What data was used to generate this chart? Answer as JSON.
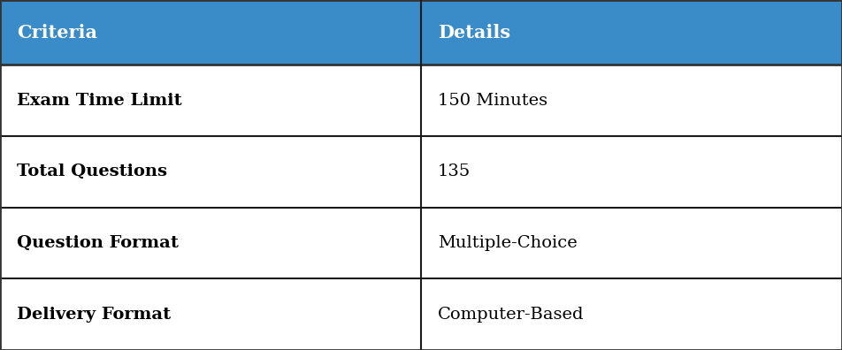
{
  "header": [
    "Criteria",
    "Details"
  ],
  "rows": [
    [
      "Exam Time Limit",
      "150 Minutes"
    ],
    [
      "Total Questions",
      "135"
    ],
    [
      "Question Format",
      "Multiple-Choice"
    ],
    [
      "Delivery Format",
      "Computer-Based"
    ]
  ],
  "header_bg_color": "#3A8CC8",
  "header_text_color": "#FFFFFF",
  "border_color": "#1A1A1A",
  "criteria_text_color": "#000000",
  "details_text_color": "#000000",
  "col_split": 0.5,
  "header_fontsize": 15,
  "row_fontsize": 14,
  "table_bg": "#FFFFFF",
  "outer_border_color": "#333333"
}
